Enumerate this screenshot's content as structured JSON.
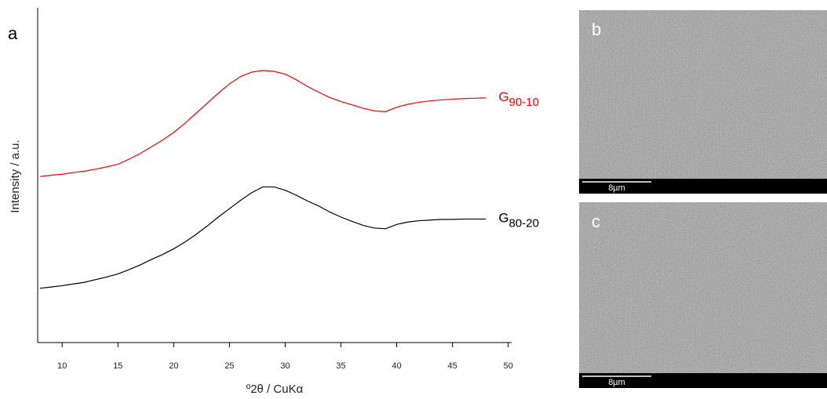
{
  "chart_data": {
    "type": "line",
    "panel_label": "a",
    "xlabel": "º2θ / CuKα",
    "ylabel": "Intensity / a.u.",
    "xlim": [
      7.8,
      50.3
    ],
    "xticks": [
      10,
      15,
      20,
      25,
      30,
      35,
      40,
      45,
      50
    ],
    "ylim": [
      0,
      100
    ],
    "x": [
      8,
      9,
      10,
      11,
      12,
      13,
      14,
      15,
      16,
      17,
      18,
      19,
      20,
      21,
      22,
      23,
      24,
      25,
      26,
      27,
      28,
      29,
      30,
      31,
      32,
      33,
      34,
      35,
      36,
      37,
      38,
      39,
      40,
      41,
      42,
      43,
      44,
      45,
      46,
      47,
      48
    ],
    "series": [
      {
        "name": "G90-10",
        "color": "#ff0000",
        "values": [
          49.6,
          50,
          50.3,
          50.8,
          51.2,
          51.8,
          52.5,
          53.3,
          54.8,
          56.5,
          58.5,
          60.5,
          62.8,
          65.5,
          68.5,
          71.5,
          74.5,
          77.3,
          79.5,
          80.8,
          81.3,
          81,
          80.2,
          78.5,
          76.5,
          74.8,
          73.2,
          72,
          71,
          70,
          69.2,
          69,
          70.3,
          71.2,
          71.8,
          72.2,
          72.5,
          72.7,
          72.9,
          73,
          73.1
        ]
      },
      {
        "name": "G80-20",
        "color": "#000000",
        "values": [
          16.2,
          16.6,
          17,
          17.5,
          18,
          18.8,
          19.6,
          20.5,
          21.8,
          23.2,
          24.8,
          26.3,
          28,
          30,
          32.3,
          34.8,
          37.5,
          40,
          42.5,
          44.8,
          46.5,
          46.5,
          45.5,
          44,
          42.3,
          40.8,
          39,
          37.5,
          36.2,
          35,
          34.2,
          34,
          35.3,
          36,
          36.4,
          36.6,
          36.8,
          36.8,
          36.9,
          36.9,
          36.9
        ]
      }
    ]
  },
  "panels": [
    {
      "label": "b",
      "scale_bar": "8µm"
    },
    {
      "label": "c",
      "scale_bar": "8µm"
    }
  ]
}
